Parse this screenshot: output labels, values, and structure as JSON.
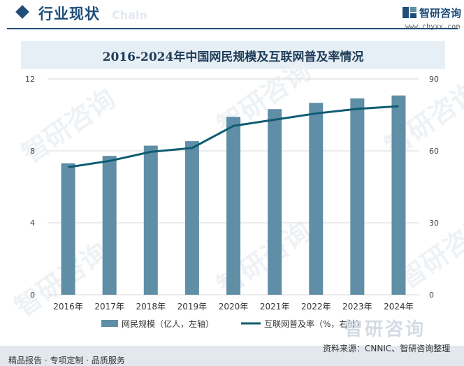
{
  "header": {
    "section_title": "行业现状",
    "section_watermark": "Chain",
    "brand_name": "智研咨询",
    "brand_url": "www.chyxx.com"
  },
  "watermark_text": "智研咨询",
  "footer": {
    "left_text": "精品报告 · 专项定制 · 品质服务",
    "source_text": "资料来源：CNNIC、智研咨询整理",
    "brand_text": "智研咨询"
  },
  "colors": {
    "bar": "#5f8ea6",
    "line": "#0f5c72",
    "accent": "#1f4e79",
    "grid": "#d9d9d9"
  },
  "chart_data": {
    "type": "bar+line",
    "title": "2016-2024年中国网民规模及互联网普及率情况",
    "categories": [
      "2016年",
      "2017年",
      "2018年",
      "2019年",
      "2020年",
      "2021年",
      "2022年",
      "2023年",
      "2024年"
    ],
    "series": [
      {
        "name": "网民规模（亿人，左轴）",
        "type": "bar",
        "axis": "left",
        "values": [
          7.31,
          7.72,
          8.29,
          8.54,
          9.89,
          10.32,
          10.67,
          10.92,
          11.08
        ]
      },
      {
        "name": "互联网普及率（%，右轴）",
        "type": "line",
        "axis": "right",
        "values": [
          53.2,
          55.8,
          59.6,
          61.2,
          70.4,
          73.0,
          75.6,
          77.5,
          78.6
        ]
      }
    ],
    "y_left": {
      "ticks": [
        "0",
        "4",
        "8",
        "12"
      ],
      "range": [
        0,
        12
      ]
    },
    "y_right": {
      "ticks": [
        "0",
        "30",
        "60",
        "90"
      ],
      "range": [
        0,
        90
      ]
    },
    "grid": true,
    "legend": "bottom"
  }
}
